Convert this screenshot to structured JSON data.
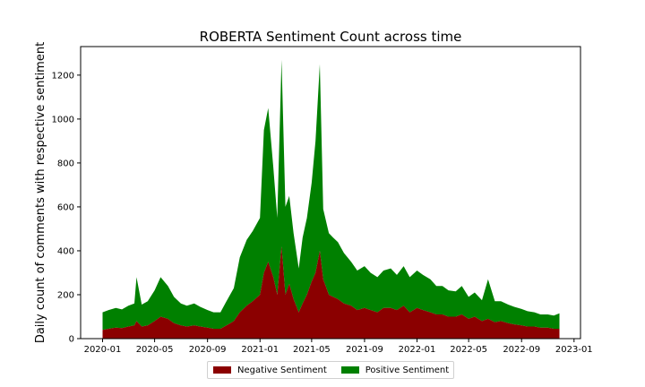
{
  "chart_data": {
    "type": "area",
    "stacked": true,
    "title": "ROBERTA Sentiment Count across time",
    "xlabel": "",
    "ylabel": "Daily count of comments with respective sentiment",
    "x_ticks": [
      "2020-01",
      "2020-05",
      "2020-09",
      "2021-01",
      "2021-05",
      "2021-09",
      "2022-01",
      "2022-05",
      "2022-09",
      "2023-01"
    ],
    "y_ticks": [
      0,
      200,
      400,
      600,
      800,
      1000,
      1200
    ],
    "xlim": [
      "2019-11-11",
      "2023-01-16"
    ],
    "ylim": [
      0,
      1330
    ],
    "legend_position": "bottom-center",
    "grid": false,
    "x": [
      "2020-01-01",
      "2020-01-15",
      "2020-02-01",
      "2020-02-15",
      "2020-03-01",
      "2020-03-15",
      "2020-03-20",
      "2020-04-01",
      "2020-04-15",
      "2020-05-01",
      "2020-05-15",
      "2020-06-01",
      "2020-06-15",
      "2020-07-01",
      "2020-07-15",
      "2020-08-01",
      "2020-08-15",
      "2020-09-01",
      "2020-09-15",
      "2020-10-01",
      "2020-10-15",
      "2020-11-01",
      "2020-11-15",
      "2020-12-01",
      "2020-12-15",
      "2021-01-01",
      "2021-01-10",
      "2021-01-20",
      "2021-02-01",
      "2021-02-10",
      "2021-02-20",
      "2021-03-01",
      "2021-03-10",
      "2021-03-20",
      "2021-04-01",
      "2021-04-10",
      "2021-04-20",
      "2021-05-01",
      "2021-05-10",
      "2021-05-20",
      "2021-05-28",
      "2021-06-10",
      "2021-06-20",
      "2021-07-01",
      "2021-07-15",
      "2021-08-01",
      "2021-08-15",
      "2021-09-01",
      "2021-09-15",
      "2021-10-01",
      "2021-10-15",
      "2021-11-01",
      "2021-11-15",
      "2021-12-01",
      "2021-12-15",
      "2022-01-01",
      "2022-01-15",
      "2022-02-01",
      "2022-02-15",
      "2022-03-01",
      "2022-03-15",
      "2022-04-01",
      "2022-04-15",
      "2022-05-01",
      "2022-05-15",
      "2022-06-01",
      "2022-06-15",
      "2022-07-01",
      "2022-07-15",
      "2022-08-01",
      "2022-08-15",
      "2022-09-01",
      "2022-09-15",
      "2022-10-01",
      "2022-10-15",
      "2022-11-01",
      "2022-11-15",
      "2022-11-28"
    ],
    "series": [
      {
        "name": "Negative Sentiment",
        "color": "#8b0000",
        "values": [
          40,
          45,
          50,
          48,
          55,
          60,
          80,
          55,
          60,
          80,
          100,
          90,
          70,
          60,
          55,
          60,
          55,
          50,
          45,
          45,
          60,
          80,
          120,
          150,
          170,
          200,
          300,
          350,
          280,
          200,
          420,
          200,
          250,
          180,
          120,
          160,
          200,
          260,
          300,
          400,
          270,
          200,
          190,
          180,
          160,
          150,
          130,
          140,
          130,
          120,
          140,
          140,
          130,
          150,
          120,
          140,
          130,
          120,
          110,
          110,
          100,
          100,
          110,
          90,
          100,
          80,
          90,
          75,
          80,
          70,
          65,
          60,
          55,
          55,
          50,
          50,
          45,
          45
        ]
      },
      {
        "name": "Positive Sentiment",
        "color": "#008000",
        "values": [
          80,
          85,
          90,
          85,
          95,
          100,
          200,
          100,
          110,
          140,
          180,
          150,
          120,
          100,
          95,
          100,
          90,
          80,
          75,
          75,
          110,
          150,
          250,
          300,
          320,
          350,
          650,
          700,
          500,
          350,
          850,
          400,
          400,
          300,
          200,
          300,
          350,
          450,
          600,
          850,
          320,
          280,
          270,
          260,
          230,
          200,
          180,
          190,
          170,
          160,
          170,
          180,
          160,
          180,
          160,
          170,
          160,
          150,
          130,
          130,
          120,
          115,
          130,
          100,
          110,
          95,
          180,
          95,
          90,
          85,
          80,
          75,
          70,
          65,
          60,
          60,
          60,
          70
        ]
      }
    ]
  }
}
